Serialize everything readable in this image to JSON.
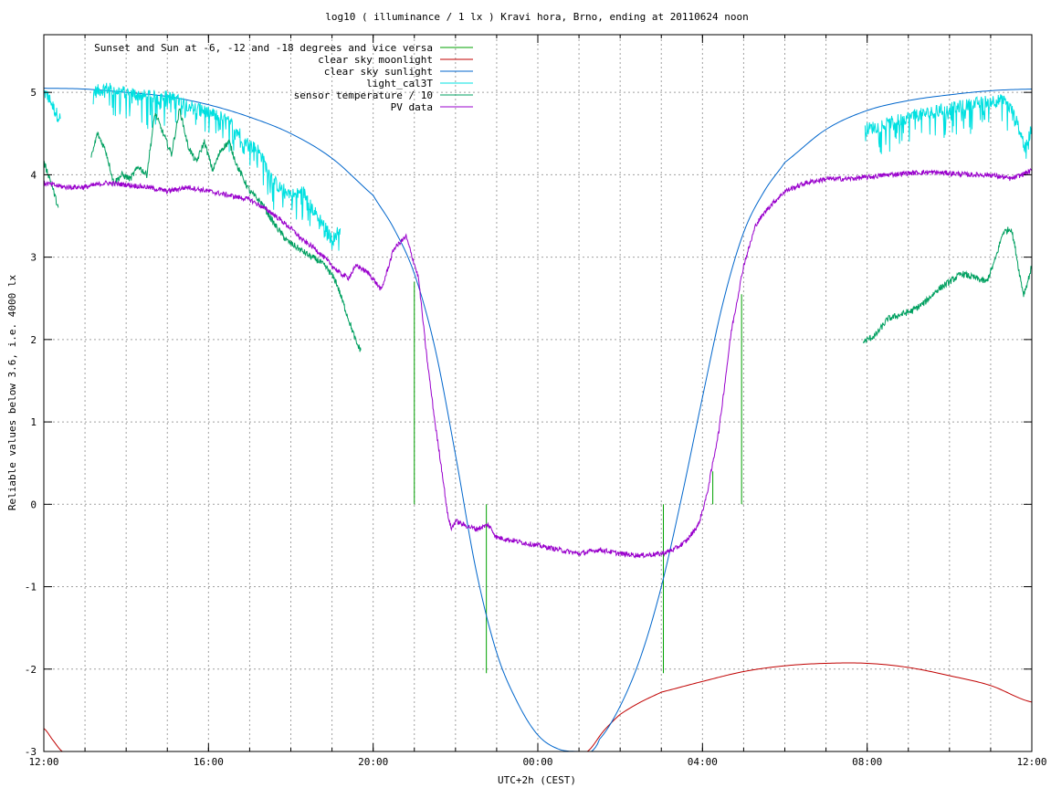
{
  "chart_data": {
    "type": "line",
    "title": "log10 ( illuminance / 1 lx ) Kravi hora, Brno, ending at 20110624 noon",
    "xlabel": "UTC+2h (CEST)",
    "ylabel": "Reliable values below 3.6, i.e. 4000 lx",
    "x_unit": "hours since 12:00",
    "xlim": [
      0,
      24
    ],
    "ylim": [
      -3,
      5.7
    ],
    "grid": true,
    "legend_position": "top-left",
    "x_tick_labels": [
      "12:00",
      "16:00",
      "20:00",
      "00:00",
      "04:00",
      "08:00",
      "12:00"
    ],
    "y_tick_labels": [
      "-3",
      "-2",
      "-1",
      "0",
      "1",
      "2",
      "3",
      "4",
      "5"
    ],
    "series": [
      {
        "name": "Sunset and Sun at -6, -12 and -18 degrees and vice versa",
        "color": "#00a000",
        "kind": "impulses",
        "x": [
          9.0,
          10.75,
          15.05,
          16.25,
          16.95
        ],
        "y": [
          2.7,
          -2.05,
          -2.05,
          0.4,
          2.55
        ]
      },
      {
        "name": "clear sky moonlight",
        "color": "#c00000",
        "x": [
          0.0,
          0.2,
          0.45,
          13.2,
          13.6,
          14.0,
          14.5,
          15.0,
          16.0,
          17.0,
          18.0,
          19.0,
          20.0,
          21.0,
          22.0,
          23.0,
          24.0
        ],
        "y": [
          -2.72,
          -2.85,
          -3.0,
          -3.0,
          -2.75,
          -2.55,
          -2.4,
          -2.28,
          -2.15,
          -2.03,
          -1.96,
          -1.93,
          -1.93,
          -1.98,
          -2.08,
          -2.2,
          -2.4
        ],
        "smooth": true
      },
      {
        "name": "clear sky sunlight",
        "color": "#0066cc",
        "x": [
          0.0,
          1.0,
          2.0,
          3.0,
          4.0,
          5.0,
          6.0,
          7.0,
          8.0,
          8.5,
          9.0,
          9.5,
          10.0,
          10.5,
          11.0,
          11.5,
          12.0,
          12.5,
          13.0,
          13.3,
          13.5,
          14.0,
          14.5,
          15.0,
          15.5,
          16.0,
          16.5,
          17.0,
          17.5,
          18.0,
          19.0,
          20.0,
          21.0,
          22.0,
          23.0,
          24.0
        ],
        "y": [
          5.05,
          5.04,
          5.0,
          4.95,
          4.85,
          4.7,
          4.5,
          4.2,
          3.75,
          3.35,
          2.8,
          1.9,
          0.6,
          -0.8,
          -1.8,
          -2.4,
          -2.8,
          -2.97,
          -3.0,
          -3.0,
          -2.85,
          -2.45,
          -1.85,
          -1.0,
          0.1,
          1.3,
          2.45,
          3.3,
          3.8,
          4.15,
          4.55,
          4.78,
          4.9,
          4.97,
          5.02,
          5.04
        ],
        "smooth": true
      },
      {
        "name": "light_cal3T",
        "color": "#00e0e0",
        "noise": 0.08,
        "segments": [
          {
            "x": [
              0.0,
              0.1,
              0.2,
              0.3,
              0.4
            ],
            "y": [
              5.0,
              4.95,
              4.85,
              4.75,
              4.68
            ]
          },
          {
            "x": [
              1.2,
              1.5,
              2.0,
              2.5,
              3.0,
              3.5,
              4.0,
              4.3,
              4.6,
              4.9,
              5.2,
              5.5,
              5.7,
              5.9,
              6.1,
              6.3,
              6.5,
              6.8,
              7.0,
              7.2
            ],
            "y": [
              5.0,
              5.05,
              5.0,
              4.95,
              4.95,
              4.85,
              4.75,
              4.7,
              4.6,
              4.4,
              4.3,
              4.0,
              3.85,
              3.8,
              3.75,
              3.8,
              3.6,
              3.4,
              3.2,
              3.35
            ]
          },
          {
            "x": [
              19.95,
              20.5,
              21.0,
              21.5,
              22.0,
              22.5,
              23.0,
              23.3,
              23.5,
              23.7,
              23.85,
              24.0
            ],
            "y": [
              4.55,
              4.62,
              4.7,
              4.75,
              4.8,
              4.85,
              4.9,
              4.9,
              4.8,
              4.55,
              4.3,
              4.6
            ]
          }
        ]
      },
      {
        "name": "sensor temperature / 10",
        "color": "#00a060",
        "noise": 0.04,
        "segments": [
          {
            "x": [
              0.0,
              0.15,
              0.35
            ],
            "y": [
              4.15,
              3.95,
              3.6
            ]
          },
          {
            "x": [
              1.15,
              1.3,
              1.5,
              1.7,
              1.9,
              2.1,
              2.3,
              2.5,
              2.7,
              2.9,
              3.1,
              3.3,
              3.5,
              3.7,
              3.9,
              4.1,
              4.3,
              4.5,
              4.7,
              5.0,
              5.3,
              5.6,
              5.9,
              6.2,
              6.5,
              6.7,
              6.9,
              7.1,
              7.2,
              7.3,
              7.4,
              7.5,
              7.6,
              7.7
            ],
            "y": [
              4.2,
              4.5,
              4.3,
              3.9,
              4.0,
              3.95,
              4.1,
              4.0,
              4.75,
              4.5,
              4.25,
              4.8,
              4.35,
              4.15,
              4.4,
              4.05,
              4.3,
              4.4,
              4.1,
              3.8,
              3.65,
              3.4,
              3.2,
              3.1,
              3.0,
              2.95,
              2.85,
              2.7,
              2.55,
              2.4,
              2.25,
              2.1,
              1.95,
              1.87
            ]
          },
          {
            "x": [
              19.9,
              20.2,
              20.5,
              20.8,
              21.1,
              21.4,
              21.7,
              22.0,
              22.3,
              22.6,
              22.9,
              23.1,
              23.3,
              23.5,
              23.6,
              23.7,
              23.8,
              23.9,
              24.0
            ],
            "y": [
              1.97,
              2.05,
              2.25,
              2.3,
              2.35,
              2.45,
              2.6,
              2.7,
              2.8,
              2.75,
              2.7,
              2.95,
              3.3,
              3.35,
              3.1,
              2.8,
              2.55,
              2.7,
              2.9
            ]
          }
        ]
      },
      {
        "name": "PV data",
        "color": "#9900cc",
        "noise": 0.03,
        "segments": [
          {
            "x": [
              0.0,
              0.5,
              1.0,
              1.5,
              2.0,
              2.5,
              3.0,
              3.5,
              4.0,
              4.5,
              5.0,
              5.5,
              6.0,
              6.3,
              6.6,
              6.9,
              7.2,
              7.4,
              7.6,
              7.9,
              8.2,
              8.5,
              8.8,
              8.95,
              9.1,
              9.3,
              9.5,
              9.7,
              9.8,
              9.9,
              10.0,
              10.2,
              10.5,
              10.8,
              11.0,
              11.5,
              12.0,
              12.5,
              13.0,
              13.5,
              14.0,
              14.5,
              15.0,
              15.3,
              15.6,
              15.9,
              16.1,
              16.4,
              16.7,
              17.0,
              17.3,
              17.6,
              18.0,
              18.5,
              19.0,
              19.5,
              20.0,
              20.5,
              21.0,
              21.5,
              22.0,
              22.5,
              23.0,
              23.5,
              24.0
            ],
            "y": [
              3.9,
              3.85,
              3.85,
              3.9,
              3.88,
              3.85,
              3.8,
              3.85,
              3.8,
              3.75,
              3.7,
              3.55,
              3.35,
              3.2,
              3.1,
              2.95,
              2.8,
              2.75,
              2.9,
              2.8,
              2.6,
              3.1,
              3.25,
              3.0,
              2.75,
              1.8,
              1.0,
              0.3,
              -0.1,
              -0.3,
              -0.2,
              -0.25,
              -0.3,
              -0.25,
              -0.4,
              -0.45,
              -0.5,
              -0.55,
              -0.6,
              -0.55,
              -0.6,
              -0.62,
              -0.6,
              -0.55,
              -0.45,
              -0.25,
              0.1,
              0.9,
              2.1,
              2.9,
              3.4,
              3.6,
              3.8,
              3.9,
              3.95,
              3.95,
              3.97,
              4.0,
              4.02,
              4.03,
              4.02,
              4.0,
              4.0,
              3.95,
              4.05
            ]
          }
        ]
      }
    ]
  }
}
